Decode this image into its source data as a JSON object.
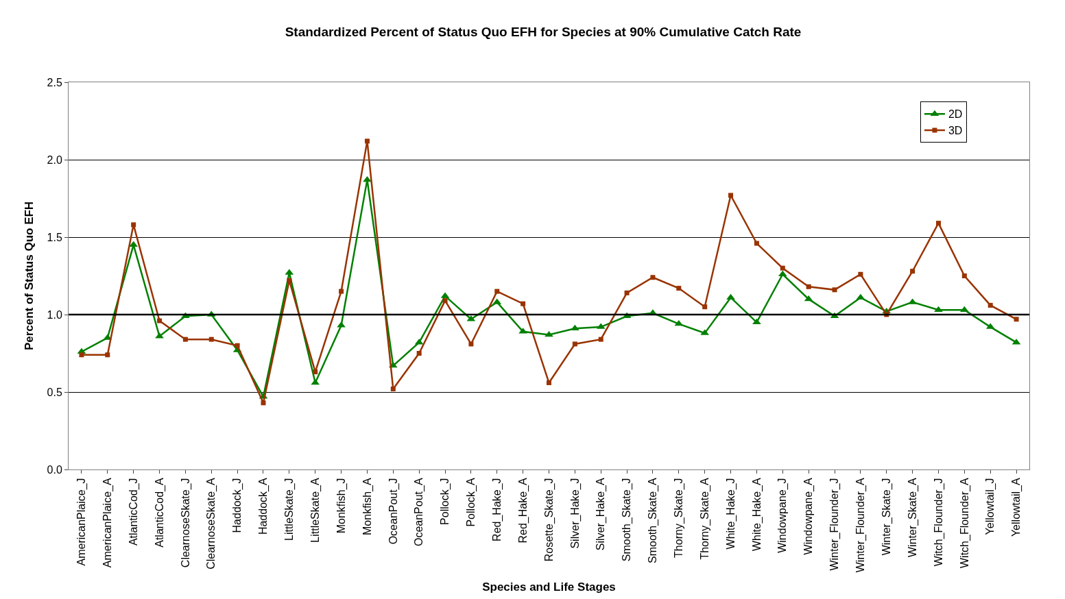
{
  "chart_data": {
    "type": "line",
    "title": "Standardized Percent of Status Quo EFH for Species at 90% Cumulative Catch Rate",
    "xlabel": "Species and Life Stages",
    "ylabel": "Percent of Status Quo EFH",
    "categories": [
      "AmericanPlaice_J",
      "AmericanPlaice_A",
      "AtlanticCod_J",
      "AtlanticCod_A",
      "ClearnoseSkate_J",
      "ClearnoseSkate_A",
      "Haddock_J",
      "Haddock_A",
      "LittleSkate_J",
      "LittleSkate_A",
      "Monkfish_J",
      "Monkfish_A",
      "OceanPout_J",
      "OceanPout_A",
      "Pollock_J",
      "Pollock_A",
      "Red_Hake_J",
      "Red_Hake_A",
      "Rosette_Skate_J",
      "Silver_Hake_J",
      "Silver_Hake_A",
      "Smooth_Skate_J",
      "Smooth_Skate_A",
      "Thorny_Skate_J",
      "Thorny_Skate_A",
      "White_Hake_J",
      "White_Hake_A",
      "Windowpane_J",
      "Windowpane_A",
      "Winter_Flounder_J",
      "Winter_Flounder_A",
      "Winter_Skate_J",
      "Winter_Skate_A",
      "Witch_Flounder_J",
      "Witch_Flounder_A",
      "Yellowtail_J",
      "Yellowtail_A"
    ],
    "series": [
      {
        "name": "2D",
        "color": "#008000",
        "marker": "triangle",
        "values": [
          0.76,
          0.85,
          1.45,
          0.86,
          0.99,
          1.0,
          0.77,
          0.47,
          1.27,
          0.56,
          0.93,
          1.87,
          0.67,
          0.82,
          1.12,
          0.97,
          1.08,
          0.89,
          0.87,
          0.91,
          0.92,
          0.99,
          1.01,
          0.94,
          0.88,
          1.11,
          0.95,
          1.26,
          1.1,
          0.99,
          1.11,
          1.02,
          1.08,
          1.03,
          1.03,
          0.92,
          0.82
        ]
      },
      {
        "name": "3D",
        "color": "#993300",
        "marker": "square",
        "values": [
          0.74,
          0.74,
          1.58,
          0.96,
          0.84,
          0.84,
          0.8,
          0.43,
          1.22,
          0.63,
          1.15,
          2.12,
          0.52,
          0.75,
          1.09,
          0.81,
          1.15,
          1.07,
          0.56,
          0.81,
          0.84,
          1.14,
          1.24,
          1.17,
          1.05,
          1.77,
          1.46,
          1.3,
          1.18,
          1.16,
          1.26,
          1.0,
          1.28,
          1.59,
          1.25,
          1.06,
          0.97
        ]
      }
    ],
    "ylim": [
      0,
      2.5
    ],
    "yticks": [
      {
        "value": 0,
        "label": "0.0"
      },
      0.5,
      {
        "value": 1,
        "label": "1.0"
      },
      1.5,
      {
        "value": 2,
        "label": "2.0"
      },
      2.5
    ],
    "ref_lines": [
      {
        "axis": "y",
        "value": 1,
        "label": null,
        "color": "#000000"
      }
    ],
    "grid": "y",
    "legend": "top right"
  }
}
